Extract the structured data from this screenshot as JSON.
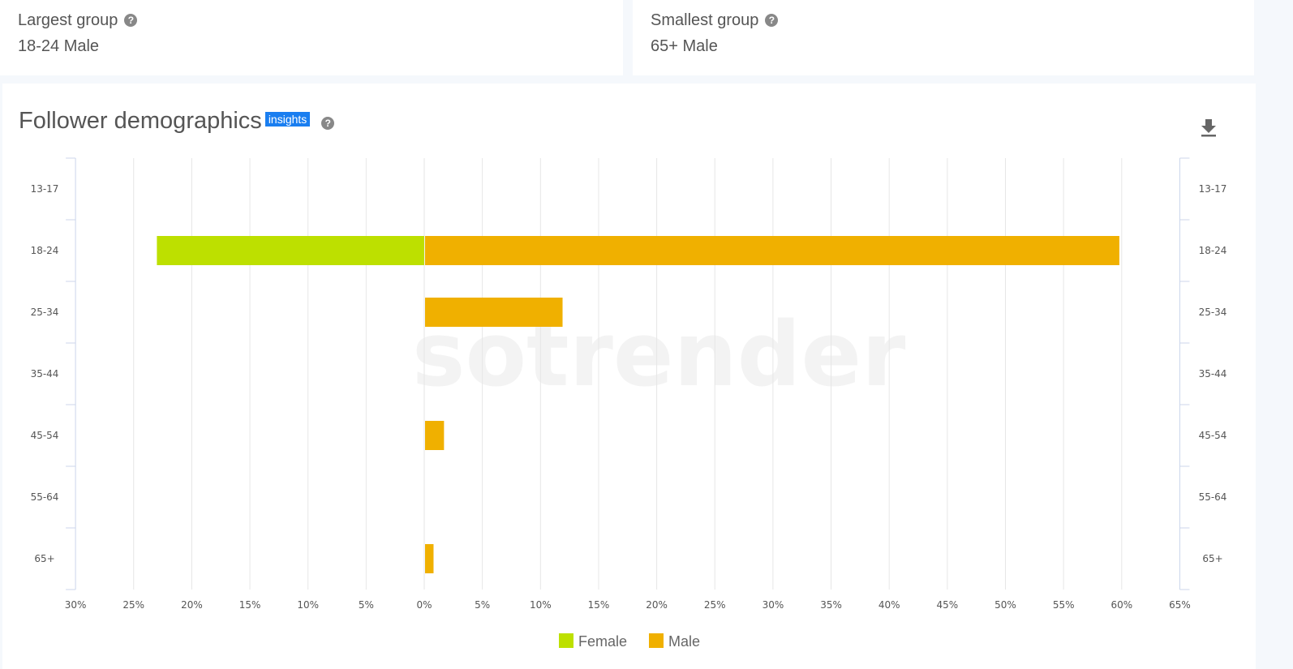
{
  "largest": {
    "label": "Largest group",
    "value": "18-24 Male"
  },
  "smallest": {
    "label": "Smallest group",
    "value": "65+ Male"
  },
  "panel": {
    "title": "Follower demographics",
    "badge": "insights"
  },
  "watermark": "sotrender",
  "chart_data": {
    "type": "bar",
    "orientation": "horizontal-population-pyramid",
    "categories": [
      "13-17",
      "18-24",
      "25-34",
      "35-44",
      "45-54",
      "55-64",
      "65+"
    ],
    "series": [
      {
        "name": "Female",
        "color": "#bde000",
        "values": [
          0,
          23.0,
          0,
          0,
          0,
          0,
          0
        ]
      },
      {
        "name": "Male",
        "color": "#f0b000",
        "values": [
          0,
          59.8,
          11.9,
          0,
          1.7,
          0,
          0.8
        ]
      }
    ],
    "xlim_female": [
      0,
      30
    ],
    "xlim_male": [
      0,
      65
    ],
    "xticks": [
      "30%",
      "25%",
      "20%",
      "15%",
      "10%",
      "5%",
      "0%",
      "5%",
      "10%",
      "15%",
      "20%",
      "25%",
      "30%",
      "35%",
      "40%",
      "45%",
      "50%",
      "55%",
      "60%",
      "65%"
    ],
    "grid": true,
    "legend": "bottom"
  }
}
